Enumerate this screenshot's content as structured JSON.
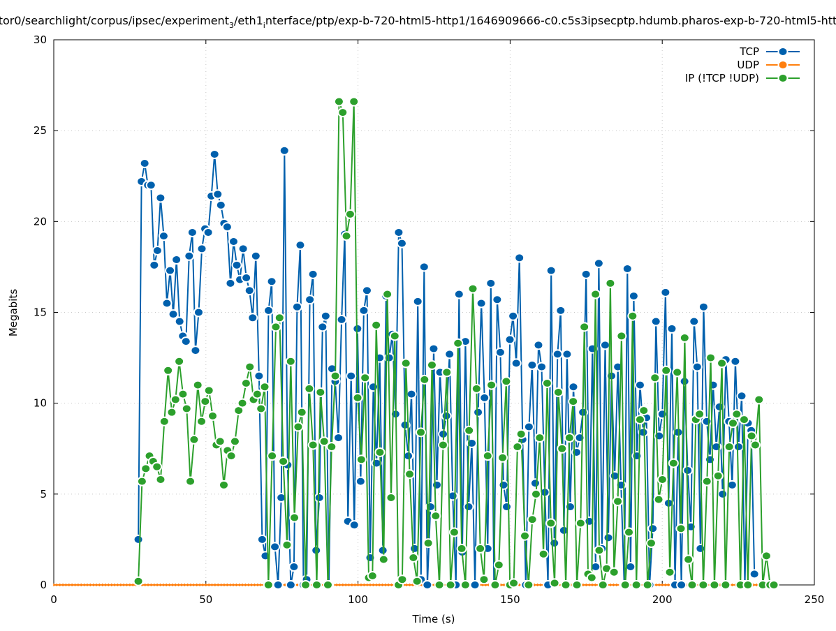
{
  "chart_data": {
    "type": "line",
    "title_parts": {
      "p1": "tor0/searchlight/corpus/ipsec/experiment",
      "sub1": "3",
      "p2": "/eth1",
      "sub2": "i",
      "p3": "nterface/ptp/exp-b-720-html5-http1/1646909666-c0.c5s3ipsecptp.hdumb.pharos-exp-b-720-html5-htt"
    },
    "xlabel": "Time (s)",
    "ylabel": "Megabits",
    "xlim": [
      0,
      250
    ],
    "ylim": [
      0,
      30
    ],
    "xticks": [
      "0",
      "50",
      "100",
      "150",
      "200",
      "250"
    ],
    "yticks": [
      "0",
      "5",
      "10",
      "15",
      "20",
      "25",
      "30"
    ],
    "grid": true,
    "legend_position": "top-right",
    "series": [
      {
        "name": "TCP",
        "color": "#0060ad",
        "x_start": 27.8,
        "x_end": 230.3,
        "values": [
          2.5,
          22.2,
          23.2,
          22.0,
          22.0,
          17.6,
          18.4,
          21.3,
          19.2,
          15.5,
          17.3,
          14.9,
          17.9,
          14.5,
          13.7,
          13.4,
          18.1,
          19.4,
          12.9,
          15.0,
          18.5,
          19.6,
          19.4,
          21.4,
          23.7,
          21.5,
          20.9,
          19.9,
          19.7,
          16.6,
          18.9,
          17.6,
          16.8,
          18.5,
          16.9,
          16.2,
          14.7,
          18.1,
          11.5,
          2.5,
          1.6,
          15.1,
          16.7,
          2.1,
          0,
          4.8,
          23.9,
          6.6,
          0,
          1.0,
          15.3,
          18.7,
          0,
          0.3,
          15.7,
          17.1,
          1.9,
          4.8,
          14.2,
          14.8,
          0,
          11.9,
          11.2,
          8.1,
          14.6,
          19.3,
          3.5,
          11.5,
          3.3,
          14.1,
          5.7,
          15.1,
          16.2,
          1.5,
          10.9,
          6.7,
          12.5,
          1.9,
          15.9,
          12.5,
          13.8,
          9.4,
          19.4,
          18.8,
          8.8,
          7.1,
          10.5,
          2.0,
          15.6,
          0.3,
          17.5,
          0,
          4.3,
          13.0,
          5.5,
          11.7,
          8.3,
          9.3,
          12.7,
          4.9,
          0,
          16.0,
          1.8,
          13.4,
          4.3,
          7.8,
          0,
          9.5,
          15.5,
          10.3,
          2.0,
          16.6,
          0,
          15.7,
          12.8,
          5.5,
          4.3,
          13.5,
          14.8,
          12.2,
          18.0,
          8.0,
          0,
          8.7,
          12.1,
          5.6,
          13.2,
          12.0,
          5.1,
          0,
          17.3,
          2.3,
          12.7,
          15.1,
          3.0,
          12.7,
          4.3,
          10.9,
          7.3,
          8.1,
          9.5,
          17.1,
          3.5,
          13.0,
          1.0,
          17.7,
          2.0,
          13.2,
          2.6,
          11.5,
          6.0,
          12.0,
          5.5,
          0,
          17.4,
          1.0,
          15.9,
          7.1,
          11.0,
          8.4,
          9.2,
          0,
          3.1,
          14.5,
          8.2,
          9.4,
          16.1,
          4.5,
          14.1,
          0,
          8.4,
          0,
          11.2,
          6.3,
          3.2,
          14.5,
          12.0,
          2.0,
          15.3,
          9.0,
          6.9,
          11.0,
          7.6,
          9.8,
          5.0,
          12.4,
          9.0,
          5.5,
          12.3,
          7.6,
          10.4,
          0,
          8.9,
          8.5,
          0.6
        ]
      },
      {
        "name": "UDP",
        "color": "#ff7f0e",
        "x_start": 0,
        "x_end": 237,
        "values_constant": 0,
        "count": 238
      },
      {
        "name": "IP (!TCP  !UDP)",
        "color": "#2ca02c",
        "x_start": 27.8,
        "x_end": 236.7,
        "values": [
          0.2,
          5.7,
          6.4,
          7.1,
          6.8,
          6.5,
          5.8,
          9.0,
          11.8,
          9.5,
          10.2,
          12.3,
          10.5,
          9.7,
          5.7,
          8.0,
          11.0,
          9.0,
          10.1,
          10.7,
          9.3,
          7.7,
          7.9,
          5.5,
          7.4,
          7.1,
          7.9,
          9.6,
          10.0,
          11.1,
          12.0,
          10.2,
          10.5,
          9.7,
          10.9,
          0,
          7.1,
          14.2,
          14.7,
          6.8,
          2.2,
          12.3,
          3.7,
          8.7,
          9.5,
          0,
          10.8,
          7.7,
          0,
          10.6,
          7.9,
          0,
          7.6,
          11.5,
          26.6,
          26.0,
          19.2,
          20.4,
          26.6,
          10.3,
          6.9,
          11.4,
          0.4,
          0.5,
          14.3,
          7.3,
          1.4,
          16.0,
          4.8,
          13.7,
          0,
          0.3,
          12.2,
          6.1,
          1.5,
          0.2,
          8.4,
          11.3,
          2.3,
          12.1,
          3.8,
          0,
          7.7,
          11.7,
          0,
          2.9,
          13.3,
          2.0,
          0,
          8.5,
          16.3,
          10.8,
          2.0,
          0.3,
          7.1,
          11.0,
          0,
          1.1,
          7.0,
          11.2,
          0,
          0.1,
          7.6,
          8.3,
          2.7,
          0,
          3.6,
          5.0,
          8.1,
          1.7,
          11.1,
          3.4,
          0.1,
          10.6,
          7.5,
          0,
          8.1,
          10.1,
          0,
          3.4,
          14.2,
          0.6,
          0.4,
          16.0,
          1.9,
          0,
          0.9,
          16.6,
          0.7,
          4.6,
          13.7,
          0,
          2.9,
          14.8,
          0,
          9.1,
          9.6,
          0,
          2.3,
          11.4,
          4.7,
          5.8,
          11.8,
          0.7,
          6.7,
          11.7,
          3.1,
          13.6,
          1.4,
          0,
          9.1,
          9.4,
          0,
          5.7,
          12.5,
          0,
          6.0,
          12.2,
          0,
          7.6,
          8.9,
          9.4,
          0,
          9.1,
          0,
          8.2,
          7.7,
          10.2,
          0,
          1.6,
          0,
          0
        ]
      }
    ]
  }
}
